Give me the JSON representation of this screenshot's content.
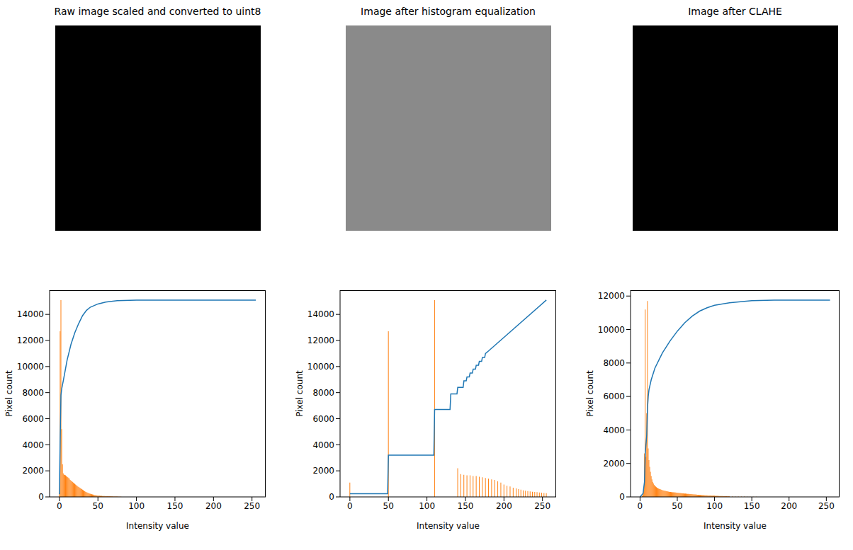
{
  "images": [
    {
      "title": "Raw image scaled and converted to uint8"
    },
    {
      "title": "Image after histogram equalization"
    },
    {
      "title": "Image after CLAHE"
    }
  ],
  "chart_data": [
    {
      "type": "histogram",
      "xlabel": "Intensity value",
      "ylabel": "Pixel count",
      "xlim": [
        -12.75,
        267.75
      ],
      "xticks": [
        0,
        50,
        100,
        150,
        200,
        250
      ],
      "ylim": [
        0,
        15855
      ],
      "yticks": [
        0,
        2000,
        4000,
        6000,
        8000,
        10000,
        12000,
        14000
      ],
      "series": [
        {
          "type": "bar",
          "color": "#ff7f0e",
          "x": [
            0,
            1,
            2,
            3,
            4,
            5,
            6,
            7,
            8,
            9,
            10,
            11,
            12,
            13,
            14,
            15,
            16,
            17,
            18,
            19,
            20,
            21,
            22,
            23,
            24,
            25,
            26,
            27,
            28,
            29,
            30,
            31,
            32,
            33,
            34,
            35,
            36,
            37,
            38,
            39,
            40,
            41,
            42,
            43,
            44,
            45,
            46,
            47,
            48,
            49,
            50,
            51,
            52,
            53,
            54,
            55,
            56,
            57,
            58,
            59,
            60,
            61,
            62,
            63,
            64,
            65,
            66,
            67,
            68,
            69,
            70,
            71,
            72,
            73,
            74,
            75,
            76,
            77,
            78,
            79,
            80
          ],
          "values": [
            300,
            12700,
            15100,
            5200,
            2500,
            1800,
            1700,
            1700,
            1650,
            1600,
            1550,
            1500,
            1450,
            1400,
            1300,
            1250,
            1200,
            1150,
            1100,
            1050,
            1000,
            950,
            900,
            850,
            800,
            760,
            720,
            680,
            640,
            600,
            560,
            520,
            480,
            440,
            400,
            370,
            340,
            310,
            280,
            260,
            240,
            220,
            200,
            185,
            170,
            155,
            140,
            130,
            120,
            110,
            100,
            95,
            90,
            86,
            82,
            78,
            74,
            70,
            66,
            62,
            58,
            55,
            52,
            49,
            46,
            43,
            40,
            38,
            36,
            34,
            32,
            30,
            28,
            26,
            24,
            22,
            20,
            18,
            16,
            14,
            12
          ]
        },
        {
          "type": "line",
          "color": "#1f77b4",
          "x": [
            0,
            1,
            2,
            3,
            5,
            10,
            15,
            20,
            25,
            30,
            35,
            40,
            50,
            60,
            75,
            100,
            150,
            255
          ],
          "values": [
            200,
            4500,
            7800,
            8300,
            8900,
            10500,
            11700,
            12600,
            13300,
            13900,
            14300,
            14550,
            14800,
            14950,
            15050,
            15100,
            15100,
            15100
          ]
        }
      ]
    },
    {
      "type": "histogram",
      "xlabel": "Intensity value",
      "ylabel": "Pixel count",
      "xlim": [
        -12.75,
        267.75
      ],
      "xticks": [
        0,
        50,
        100,
        150,
        200,
        250
      ],
      "ylim": [
        0,
        15855
      ],
      "yticks": [
        0,
        2000,
        4000,
        6000,
        8000,
        10000,
        12000,
        14000
      ],
      "series": [
        {
          "type": "bar",
          "color": "#ff7f0e",
          "x": [
            0,
            50,
            110,
            140,
            144,
            148,
            152,
            156,
            160,
            164,
            168,
            172,
            176,
            180,
            184,
            188,
            192,
            196,
            200,
            204,
            208,
            212,
            216,
            219,
            222,
            225,
            228,
            231,
            234,
            237,
            240,
            243,
            246,
            249,
            252,
            255
          ],
          "values": [
            1100,
            12700,
            15100,
            2200,
            1750,
            1700,
            1650,
            1650,
            1600,
            1600,
            1550,
            1500,
            1450,
            1400,
            1350,
            1300,
            1200,
            1100,
            950,
            850,
            800,
            700,
            650,
            600,
            550,
            500,
            470,
            450,
            420,
            400,
            380,
            360,
            340,
            320,
            300,
            280
          ]
        },
        {
          "type": "line",
          "color": "#1f77b4",
          "x": [
            0,
            49,
            50,
            109,
            110,
            130,
            131,
            139,
            140,
            147,
            148,
            151,
            152,
            155,
            156,
            159,
            160,
            163,
            164,
            167,
            168,
            171,
            172,
            175,
            176,
            180,
            255
          ],
          "values": [
            250,
            250,
            3200,
            3200,
            6700,
            6700,
            7900,
            7900,
            8400,
            8400,
            8900,
            8900,
            9200,
            9200,
            9500,
            9500,
            9800,
            9800,
            10100,
            10100,
            10400,
            10400,
            10700,
            10700,
            11000,
            11200,
            15100
          ]
        }
      ]
    },
    {
      "type": "histogram",
      "xlabel": "Intensity value",
      "ylabel": "Pixel count",
      "xlim": [
        -12.75,
        267.75
      ],
      "xticks": [
        0,
        50,
        100,
        150,
        200,
        250
      ],
      "ylim": [
        0,
        12348
      ],
      "yticks": [
        0,
        2000,
        4000,
        6000,
        8000,
        10000,
        12000
      ],
      "series": [
        {
          "type": "bar",
          "color": "#ff7f0e",
          "x": [
            3,
            4,
            5,
            6,
            7,
            8,
            9,
            10,
            11,
            12,
            13,
            14,
            15,
            16,
            17,
            18,
            19,
            20,
            21,
            22,
            23,
            24,
            25,
            26,
            27,
            28,
            29,
            30,
            31,
            32,
            33,
            34,
            35,
            36,
            37,
            38,
            39,
            40,
            41,
            42,
            43,
            44,
            45,
            46,
            47,
            48,
            49,
            50,
            51,
            52,
            53,
            54,
            55,
            56,
            57,
            58,
            59,
            60,
            61,
            62,
            63,
            64,
            65,
            66,
            67,
            68,
            69,
            70,
            71,
            72,
            73,
            74,
            75,
            76,
            77,
            78,
            79,
            80,
            81,
            82,
            83,
            84,
            85,
            86,
            87,
            88,
            89,
            90,
            91,
            92,
            93,
            94,
            95,
            96,
            97,
            98,
            99,
            100,
            101,
            102,
            103,
            104,
            105,
            106,
            107,
            108,
            109,
            110,
            111,
            112,
            113,
            114,
            115,
            116,
            117,
            118,
            119,
            120,
            124,
            128,
            132,
            136,
            140,
            144,
            148,
            152,
            156
          ],
          "values": [
            50,
            150,
            400,
            2600,
            11200,
            2400,
            5000,
            11700,
            2900,
            2200,
            1800,
            1500,
            1250,
            1050,
            900,
            800,
            720,
            660,
            620,
            580,
            550,
            520,
            500,
            480,
            460,
            440,
            420,
            400,
            390,
            380,
            370,
            360,
            350,
            340,
            330,
            320,
            310,
            300,
            295,
            290,
            285,
            280,
            275,
            270,
            265,
            260,
            255,
            250,
            245,
            240,
            235,
            230,
            225,
            220,
            215,
            210,
            205,
            200,
            196,
            192,
            188,
            184,
            180,
            176,
            172,
            168,
            164,
            160,
            156,
            152,
            148,
            144,
            140,
            136,
            132,
            128,
            124,
            120,
            117,
            114,
            111,
            108,
            105,
            102,
            99,
            96,
            93,
            90,
            88,
            86,
            84,
            82,
            80,
            78,
            76,
            74,
            72,
            70,
            68,
            66,
            64,
            62,
            60,
            58,
            56,
            54,
            52,
            50,
            48,
            46,
            44,
            42,
            40,
            38,
            36,
            34,
            32,
            30,
            28,
            25,
            22,
            20,
            18,
            15,
            12,
            10,
            8
          ]
        },
        {
          "type": "line",
          "color": "#1f77b4",
          "x": [
            0,
            4,
            6,
            7,
            9,
            10,
            11,
            12,
            15,
            20,
            30,
            40,
            50,
            60,
            70,
            80,
            90,
            100,
            120,
            150,
            180,
            255
          ],
          "values": [
            0,
            200,
            900,
            2600,
            3700,
            5300,
            6000,
            6400,
            7000,
            7700,
            8600,
            9300,
            9900,
            10400,
            10800,
            11100,
            11300,
            11450,
            11600,
            11720,
            11760,
            11760
          ]
        }
      ]
    }
  ]
}
